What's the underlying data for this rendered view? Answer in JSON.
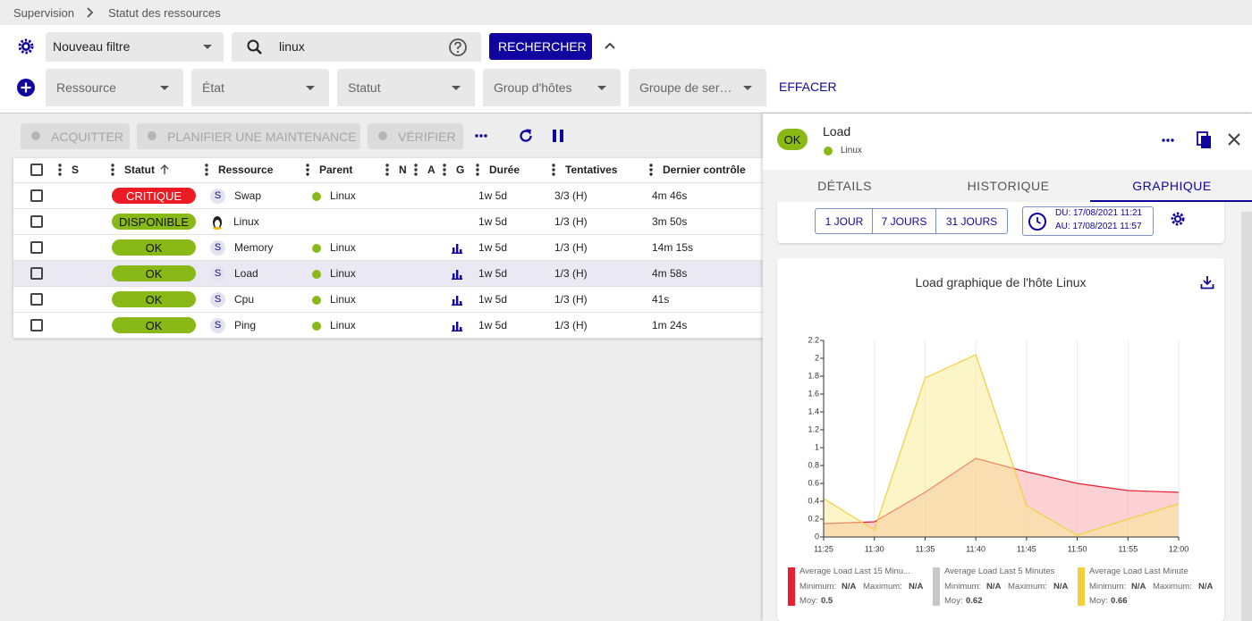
{
  "breadcrumb": [
    "Supervision",
    "Statut des ressources"
  ],
  "filter": {
    "name": "Nouveau filtre",
    "search": "linux",
    "search_button": "RECHERCHER",
    "selects": [
      "Ressource",
      "État",
      "Statut",
      "Group d'hôtes",
      "Groupe de ser…"
    ],
    "clear": "EFFACER"
  },
  "actions": [
    "ACQUITTER",
    "PLANIFIER UNE MAINTENANCE",
    "VÉRIFIER"
  ],
  "table": {
    "columns": [
      "S",
      "Statut",
      "Ressource",
      "Parent",
      "N",
      "A",
      "G",
      "Durée",
      "Tentatives",
      "Dernier contrôle"
    ],
    "rows": [
      {
        "status": "CRITIQUE",
        "status_color": "#ed1c24",
        "icon": "S",
        "resource": "Swap",
        "parent": "Linux",
        "graph": false,
        "duration": "1w 5d",
        "tries": "3/3 (H)",
        "last_check": "4m 46s"
      },
      {
        "status": "DISPONIBLE",
        "status_color": "#88b917",
        "resource": "Linux",
        "graph": false,
        "duration": "1w 5d",
        "tries": "1/3 (H)",
        "last_check": "3m 50s"
      },
      {
        "status": "OK",
        "status_color": "#88b917",
        "icon": "S",
        "resource": "Memory",
        "parent": "Linux",
        "graph": true,
        "duration": "1w 5d",
        "tries": "1/3 (H)",
        "last_check": "14m 15s"
      },
      {
        "status": "OK",
        "status_color": "#88b917",
        "icon": "S",
        "resource": "Load",
        "parent": "Linux",
        "graph": true,
        "duration": "1w 5d",
        "tries": "1/3 (H)",
        "last_check": "4m 58s"
      },
      {
        "status": "OK",
        "status_color": "#88b917",
        "icon": "S",
        "resource": "Cpu",
        "parent": "Linux",
        "graph": true,
        "duration": "1w 5d",
        "tries": "1/3 (H)",
        "last_check": "41s"
      },
      {
        "status": "OK",
        "status_color": "#88b917",
        "icon": "S",
        "resource": "Ping",
        "parent": "Linux",
        "graph": true,
        "duration": "1w 5d",
        "tries": "1/3 (H)",
        "last_check": "1m 24s"
      }
    ]
  },
  "details": {
    "status": "OK",
    "name": "Load",
    "parent": "Linux",
    "tabs": [
      "DÉTAILS",
      "HISTORIQUE",
      "GRAPHIQUE"
    ],
    "active_tab": 2,
    "periods": [
      "1 JOUR",
      "7 JOURS",
      "31 JOURS"
    ],
    "from": "DU: 17/08/2021 11:21",
    "to": "AU: 17/08/2021 11:57"
  },
  "chart": {
    "type": "area",
    "title": "Load graphique de l'hôte Linux",
    "x": [
      "11:25",
      "11:30",
      "11:35",
      "11:40",
      "11:45",
      "11:50",
      "11:55",
      "12:00"
    ],
    "ylim": [
      0,
      2.2
    ],
    "yticks": [
      0,
      0.2,
      0.4,
      0.6,
      0.8,
      1,
      1.2,
      1.4,
      1.6,
      1.8,
      2,
      2.2
    ],
    "grid": true,
    "stat_labels": [
      "Minimum:",
      "Maximum:",
      "Moy:"
    ],
    "series": [
      {
        "name": "Average Load Last 15 Minu...",
        "color": "#e8202f",
        "fill": "#f7a3a8",
        "values": [
          0.15,
          0.17,
          0.5,
          0.88,
          0.73,
          0.6,
          0.52,
          0.5
        ],
        "minimum": "N/A",
        "maximum": "N/A",
        "average": "0.5"
      },
      {
        "name": "Average Load Last 5 Minutes",
        "color": "#c8c8c8",
        "fill": "#c8c8c8",
        "values": [
          null,
          null,
          null,
          null,
          null,
          null,
          null,
          null
        ],
        "minimum": "N/A",
        "maximum": "N/A",
        "average": "0.62"
      },
      {
        "name": "Average Load Last Minute",
        "color": "#f2cf3c",
        "fill": "#f8eb92",
        "values": [
          0.43,
          0.08,
          1.78,
          2.04,
          0.35,
          0.02,
          0.2,
          0.37
        ],
        "minimum": "N/A",
        "maximum": "N/A",
        "average": "0.66"
      }
    ]
  }
}
